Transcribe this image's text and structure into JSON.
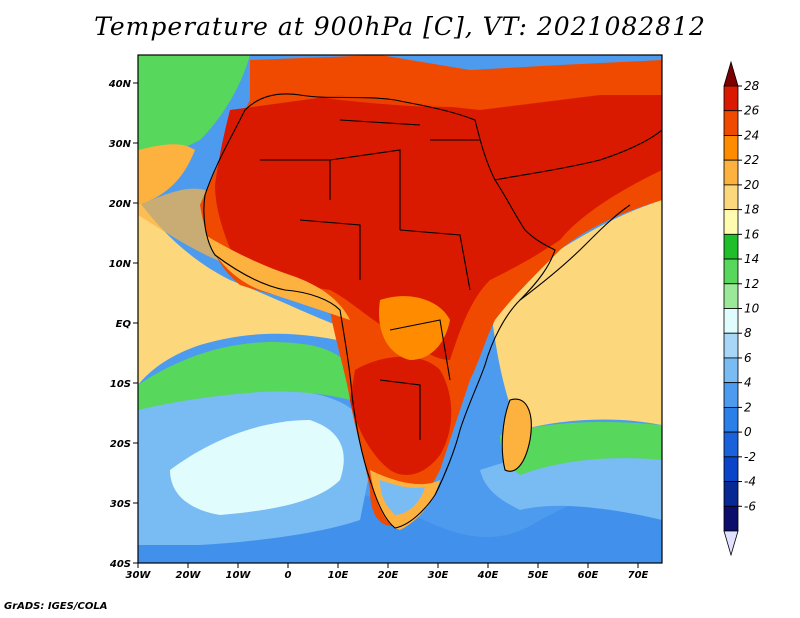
{
  "title": "Temperature at 900hPa [C], VT: 2021082812",
  "credit": "GrADS: IGES/COLA",
  "lon_labels": [
    "30W",
    "20W",
    "10W",
    "0",
    "10E",
    "20E",
    "30E",
    "40E",
    "50E",
    "60E",
    "70E"
  ],
  "lat_labels": [
    "40N",
    "30N",
    "20N",
    "10N",
    "EQ",
    "10S",
    "20S",
    "30S",
    "40S"
  ],
  "colorbar": {
    "labels": [
      "28",
      "26",
      "24",
      "22",
      "20",
      "18",
      "16",
      "14",
      "12",
      "10",
      "8",
      "6",
      "4",
      "2",
      "0",
      "-2",
      "-4",
      "-6"
    ],
    "colors": [
      "#7d0000",
      "#d91a00",
      "#f04a00",
      "#ff8c00",
      "#fdb240",
      "#fdd77c",
      "#fffbaf",
      "#1fbe2b",
      "#57d75b",
      "#9be898",
      "#e1fcfc",
      "#a7d6f7",
      "#79bbf3",
      "#4d9bef",
      "#2a7fe8",
      "#1a62dc",
      "#0a44c8",
      "#062993",
      "#0d0d6b",
      "#e1e1ff"
    ]
  },
  "map_colors": {
    "ocean_warm": "#fdd77c",
    "ocean_hot": "#fdb240",
    "land_hot": "#d91a00",
    "land_warm": "#f04a00",
    "ocean_green": "#57d75b",
    "ocean_light": "#e1fcfc",
    "ocean_blue": "#79bbf3",
    "ocean_deep": "#4d9bef"
  }
}
